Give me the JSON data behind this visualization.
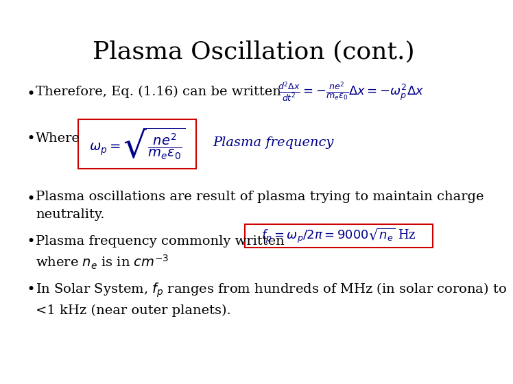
{
  "title": "Plasma Oscillation (cont.)",
  "title_fontsize": 26,
  "title_color": "#000000",
  "bg_color": "#ffffff",
  "bullet_color": "#000000",
  "eq_color": "#00008B",
  "plasma_freq_color": "#00008B",
  "box_edge_color": "#cc0000",
  "bullet1_text": "Therefore, Eq. (1.16) can be written",
  "bullet1_eq": "$\\frac{d^2\\Delta x}{dt^2} = -\\frac{ne^2}{m_e\\epsilon_0}\\Delta x = -\\omega_p^2\\Delta x$",
  "bullet2_text": "Where",
  "bullet2_eq": "$\\omega_p = \\sqrt{\\dfrac{ne^2}{m_e\\epsilon_0}}$",
  "bullet2_label": "Plasma frequency",
  "bullet3_text": "Plasma oscillations are result of plasma trying to maintain charge\nneutrality.",
  "bullet4_text1": "Plasma frequency commonly written",
  "bullet4_eq": "$f_p = \\omega_p/2\\pi = 9000\\sqrt{n_e}$ Hz",
  "bullet4_text2": "where $n_e$ is in $cm^{-3}$",
  "bullet5_text1": "In Solar System, $f_p$ ranges from hundreds of MHz (in solar corona) to\n<1 kHz (near outer planets).",
  "text_fontsize": 14,
  "eq_fontsize": 13
}
